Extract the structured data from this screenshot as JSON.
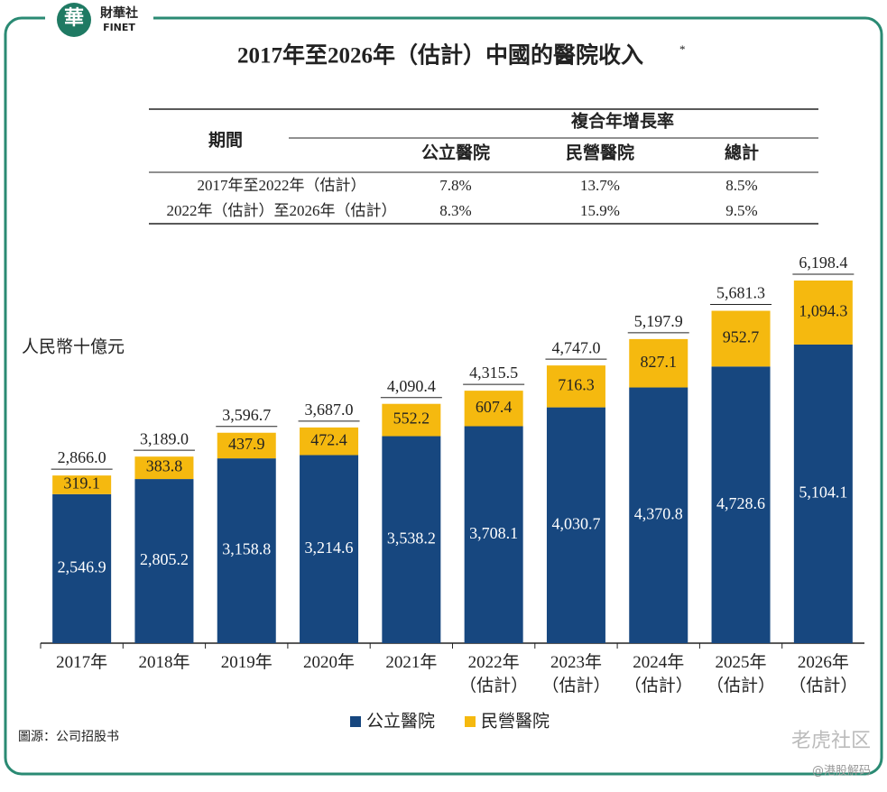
{
  "chart_data": {
    "type": "stacked_bar",
    "title": "2017年至2026年（估計）中國的醫院收入",
    "title_note": "*",
    "y_label": "人民幣十億元",
    "categories": [
      "2017年",
      "2018年",
      "2019年",
      "2020年",
      "2021年",
      "2022年\n（估計）",
      "2023年\n（估計）",
      "2024年\n（估計）",
      "2025年\n（估計）",
      "2026年\n（估計）"
    ],
    "series": [
      {
        "name": "公立醫院",
        "color": "#17477f",
        "values": [
          2546.9,
          2805.2,
          3158.8,
          3214.6,
          3538.2,
          3708.1,
          4030.7,
          4370.8,
          4728.6,
          5104.1
        ],
        "value_labels": [
          "2,546.9",
          "2,805.2",
          "3,158.8",
          "3,214.6",
          "3,538.2",
          "3,708.1",
          "4,030.7",
          "4,370.8",
          "4,728.6",
          "5,104.1"
        ]
      },
      {
        "name": "民營醫院",
        "color": "#f5b90f",
        "values": [
          319.1,
          383.8,
          437.9,
          472.4,
          552.2,
          607.4,
          716.3,
          827.1,
          952.7,
          1094.3
        ],
        "value_labels": [
          "319.1",
          "383.8",
          "437.9",
          "472.4",
          "552.2",
          "607.4",
          "716.3",
          "827.1",
          "952.7",
          "1,094.3"
        ]
      }
    ],
    "totals": {
      "values": [
        2866.0,
        3189.0,
        3596.7,
        3687.0,
        4090.4,
        4315.5,
        4747.0,
        5197.9,
        5681.3,
        6198.4
      ],
      "value_labels": [
        "2,866.0",
        "3,189.0",
        "3,596.7",
        "3,687.0",
        "4,090.4",
        "4,315.5",
        "4,747.0",
        "5,197.9",
        "5,681.3",
        "6,198.4"
      ]
    },
    "ylim": [
      0,
      6198.4
    ]
  },
  "table": {
    "period_header": "期間",
    "group_header": "複合年增長率",
    "columns": [
      "公立醫院",
      "民營醫院",
      "總計"
    ],
    "rows": [
      [
        "2017年至2022年（估計）",
        "7.8%",
        "13.7%",
        "8.5%"
      ],
      [
        "2022年（估計）至2026年（估計）",
        "8.3%",
        "15.9%",
        "9.5%"
      ]
    ]
  },
  "source": "圖源：公司招股书",
  "logo": {
    "mark": "華",
    "name": "財華社",
    "sub": "FINET"
  },
  "watermark": {
    "name": "老虎社区",
    "handle": "@港股解码"
  }
}
